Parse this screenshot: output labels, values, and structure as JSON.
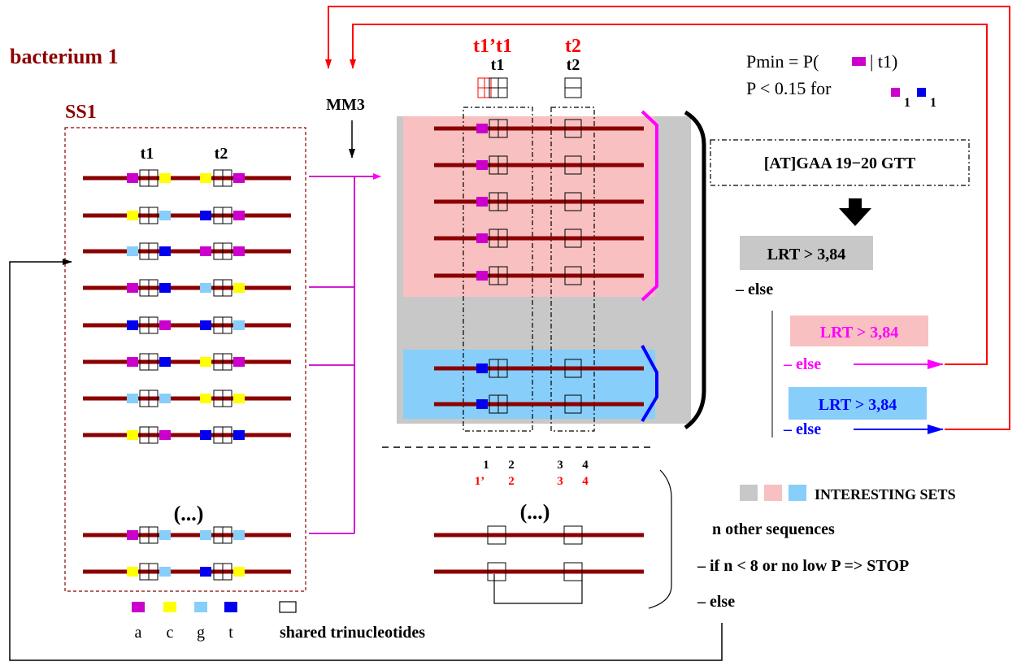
{
  "title": "bacterium 1",
  "colors": {
    "a": "#cc00cc",
    "c": "#ffff00",
    "g": "#87cefa",
    "t": "#0000ee",
    "seq_line": "#8b0000",
    "magenta": "#ff00ff",
    "red": "#ff0000",
    "blue": "#0000ff",
    "gray_box": "#c8c8c8",
    "pink_box": "#f8c0c0",
    "blue_box": "#87cefa"
  },
  "ss1": {
    "label": "SS1",
    "t1_label": "t1",
    "t2_label": "t2",
    "ellipsis": "(...)",
    "rows": [
      {
        "t1": [
          "a",
          "c"
        ],
        "t2": [
          "c",
          "a"
        ]
      },
      {
        "t1": [
          "c",
          "g"
        ],
        "t2": [
          "t",
          "a"
        ]
      },
      {
        "t1": [
          "g",
          "t"
        ],
        "t2": [
          "a",
          "a"
        ]
      },
      {
        "t1": [
          "a",
          "t"
        ],
        "t2": [
          "g",
          "c"
        ]
      },
      {
        "t1": [
          "t",
          "a"
        ],
        "t2": [
          "t",
          "g"
        ]
      },
      {
        "t1": [
          "a",
          "t"
        ],
        "t2": [
          "c",
          "a"
        ]
      },
      {
        "t1": [
          "g",
          "g"
        ],
        "t2": [
          "c",
          "c"
        ]
      },
      {
        "t1": [
          "c",
          "a"
        ],
        "t2": [
          "t",
          "t"
        ]
      }
    ],
    "tail_rows": [
      {
        "t1": [
          "a",
          "g"
        ],
        "t2": [
          "g",
          "g"
        ]
      },
      {
        "t1": [
          "c",
          "g"
        ],
        "t2": [
          "t",
          "c"
        ]
      }
    ]
  },
  "legend": {
    "items": [
      {
        "key": "a",
        "label": "a"
      },
      {
        "key": "c",
        "label": "c"
      },
      {
        "key": "g",
        "label": "g"
      },
      {
        "key": "t",
        "label": "t"
      }
    ],
    "shared_label": "shared trinucleotides"
  },
  "mm3_label": "MM3",
  "middle": {
    "t1prime_label": "t1’",
    "t1_red": "t1",
    "t2_red": "t2",
    "t1_black": "t1",
    "t2_black": "t2",
    "pos_black": [
      "1",
      "2",
      "3",
      "4"
    ],
    "pos_red": [
      "1’",
      "2",
      "3",
      "4"
    ],
    "ellipsis": "(...)"
  },
  "right": {
    "pmin_prefix": "Pmin = P(",
    "pmin_suffix": "| t1)",
    "p_text": "P < 0.15 for",
    "subscript": "1",
    "motif": "[AT]GAA 19−20 GTT",
    "lrt_gray": "LRT > 3,84",
    "else_main": "– else",
    "lrt_pink": "LRT > 3,84",
    "else_pink": "– else",
    "lrt_blue": "LRT > 3,84",
    "else_blue": "– else",
    "interesting": "INTERESTING SETS",
    "n_other": "n other sequences",
    "if_text": "– if n < 8 or no low P => STOP",
    "else_final": "– else"
  }
}
